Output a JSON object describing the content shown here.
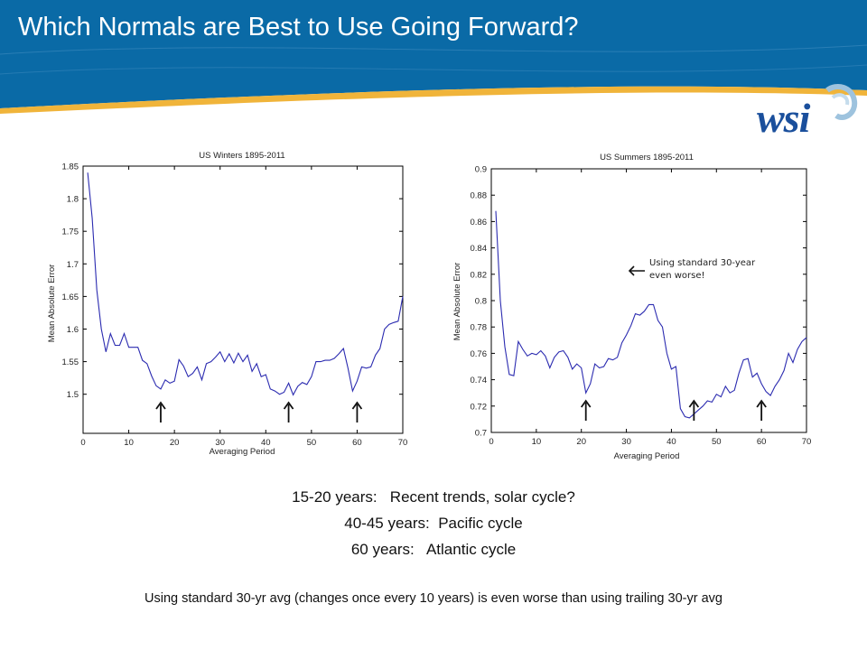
{
  "slide": {
    "title": "Which Normals are Best to Use Going Forward?",
    "colors": {
      "header_blue": "#0a6aa6",
      "header_gold": "#f0b43a",
      "logo_blue": "#1a4f9c",
      "line": "#2b2bb0"
    }
  },
  "logo": {
    "text": "wsi",
    "icon": "wsi-swirl-logo-icon"
  },
  "chart_data": [
    {
      "type": "line",
      "title": "US Winters 1895-2011",
      "xlabel": "Averaging Period",
      "ylabel": "Mean Absolute Error",
      "xlim": [
        0,
        70
      ],
      "ylim": [
        1.44,
        1.85
      ],
      "xticks": [
        0,
        10,
        20,
        30,
        40,
        50,
        60,
        70
      ],
      "yticks": [
        1.5,
        1.55,
        1.6,
        1.65,
        1.7,
        1.75,
        1.8,
        1.85
      ],
      "ytick_labels": [
        "1.5",
        "1.55",
        "1.6",
        "1.65",
        "1.7",
        "1.75",
        "1.8",
        "1.85"
      ],
      "grid": false,
      "series": [
        {
          "x": [
            1,
            2,
            3,
            4,
            5,
            6,
            7,
            8,
            9,
            10,
            11,
            12,
            13,
            14,
            15,
            16,
            17,
            18,
            19,
            20,
            21,
            22,
            23,
            24,
            25,
            26,
            27,
            28,
            29,
            30,
            31,
            32,
            33,
            34,
            35,
            36,
            37,
            38,
            39,
            40,
            41,
            42,
            43,
            44,
            45,
            46,
            47,
            48,
            49,
            50,
            51,
            52,
            53,
            54,
            55,
            56,
            57,
            58,
            59,
            60,
            61,
            62,
            63,
            64,
            65,
            66,
            67,
            68,
            69,
            70
          ],
          "y": [
            1.84,
            1.77,
            1.66,
            1.6,
            1.565,
            1.593,
            1.575,
            1.575,
            1.593,
            1.572,
            1.572,
            1.572,
            1.552,
            1.547,
            1.528,
            1.513,
            1.508,
            1.522,
            1.517,
            1.52,
            1.553,
            1.543,
            1.527,
            1.532,
            1.542,
            1.522,
            1.547,
            1.55,
            1.557,
            1.565,
            1.55,
            1.562,
            1.548,
            1.563,
            1.55,
            1.56,
            1.535,
            1.547,
            1.527,
            1.53,
            1.508,
            1.505,
            1.5,
            1.503,
            1.517,
            1.499,
            1.512,
            1.518,
            1.515,
            1.527,
            1.55,
            1.55,
            1.552,
            1.552,
            1.555,
            1.562,
            1.57,
            1.54,
            1.505,
            1.52,
            1.542,
            1.54,
            1.542,
            1.56,
            1.57,
            1.6,
            1.607,
            1.61,
            1.612,
            1.65
          ]
        }
      ],
      "arrows_at_x": [
        17,
        45,
        60
      ]
    },
    {
      "type": "line",
      "title": "US Summers 1895-2011",
      "xlabel": "Averaging Period",
      "ylabel": "Mean Absolute Error",
      "xlim": [
        0,
        70
      ],
      "ylim": [
        0.7,
        0.9
      ],
      "xticks": [
        0,
        10,
        20,
        30,
        40,
        50,
        60,
        70
      ],
      "yticks": [
        0.7,
        0.72,
        0.74,
        0.76,
        0.78,
        0.8,
        0.82,
        0.84,
        0.86,
        0.88,
        0.9
      ],
      "ytick_labels": [
        "0.7",
        "0.72",
        "0.74",
        "0.76",
        "0.78",
        "0.8",
        "0.82",
        "0.84",
        "0.86",
        "0.88",
        "0.9"
      ],
      "grid": false,
      "series": [
        {
          "x": [
            1,
            2,
            3,
            4,
            5,
            6,
            7,
            8,
            9,
            10,
            11,
            12,
            13,
            14,
            15,
            16,
            17,
            18,
            19,
            20,
            21,
            22,
            23,
            24,
            25,
            26,
            27,
            28,
            29,
            30,
            31,
            32,
            33,
            34,
            35,
            36,
            37,
            38,
            39,
            40,
            41,
            42,
            43,
            44,
            45,
            46,
            47,
            48,
            49,
            50,
            51,
            52,
            53,
            54,
            55,
            56,
            57,
            58,
            59,
            60,
            61,
            62,
            63,
            64,
            65,
            66,
            67,
            68,
            69,
            70
          ],
          "y": [
            0.868,
            0.8,
            0.765,
            0.744,
            0.743,
            0.769,
            0.763,
            0.758,
            0.76,
            0.759,
            0.762,
            0.758,
            0.749,
            0.757,
            0.761,
            0.762,
            0.757,
            0.748,
            0.752,
            0.749,
            0.73,
            0.737,
            0.752,
            0.749,
            0.75,
            0.756,
            0.755,
            0.757,
            0.768,
            0.774,
            0.781,
            0.79,
            0.789,
            0.792,
            0.797,
            0.797,
            0.785,
            0.78,
            0.76,
            0.748,
            0.75,
            0.718,
            0.712,
            0.711,
            0.714,
            0.717,
            0.72,
            0.724,
            0.723,
            0.729,
            0.727,
            0.735,
            0.73,
            0.732,
            0.745,
            0.755,
            0.756,
            0.742,
            0.745,
            0.737,
            0.731,
            0.728,
            0.735,
            0.74,
            0.747,
            0.76,
            0.753,
            0.763,
            0.769,
            0.772
          ]
        }
      ],
      "annotation": {
        "text_line1": "Using standard 30-year",
        "text_line2": "even worse!"
      },
      "arrows_at_x": [
        21,
        45,
        60
      ]
    }
  ],
  "bullets": [
    "15-20 years:   Recent trends, solar cycle?",
    "40-45 years:  Pacific cycle",
    "60 years:   Atlantic cycle"
  ],
  "footnote": "Using standard 30-yr avg (changes once every 10 years) is even worse than using trailing 30-yr avg"
}
